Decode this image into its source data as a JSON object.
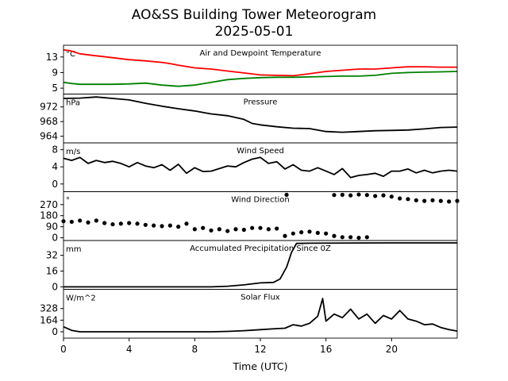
{
  "figure": {
    "title": "AO&SS Building Tower Meteorogram",
    "date": "2025-05-01",
    "xlabel": "Time (UTC)"
  },
  "chart_data": [
    {
      "type": "line",
      "title": "Air and Dewpoint Temperature",
      "unit": "°C",
      "xlim": [
        0,
        24
      ],
      "ylim": [
        3.5,
        16
      ],
      "yticks": [
        5,
        9,
        13
      ],
      "series": [
        {
          "color": "#ff0000",
          "x": [
            0,
            0.4,
            1,
            2,
            3,
            4,
            5,
            6,
            6.5,
            7,
            8,
            9,
            10,
            11,
            12,
            13,
            14,
            15,
            16,
            17,
            18,
            19,
            20,
            21,
            22,
            23,
            24
          ],
          "values": [
            14.8,
            14.6,
            13.8,
            13.3,
            12.8,
            12.3,
            12.0,
            11.6,
            11.3,
            10.9,
            10.2,
            9.9,
            9.4,
            8.9,
            8.4,
            8.3,
            8.2,
            8.7,
            9.3,
            9.6,
            9.9,
            9.9,
            10.2,
            10.5,
            10.5,
            10.4,
            10.4
          ]
        },
        {
          "color": "#008000",
          "x": [
            0,
            0.5,
            1,
            2,
            3,
            4,
            5,
            6,
            7,
            8,
            9,
            10,
            11,
            12,
            13,
            14,
            15,
            16,
            17,
            18,
            19,
            20,
            21,
            22,
            23,
            24
          ],
          "values": [
            6.5,
            6.2,
            6.0,
            6.0,
            6.0,
            6.1,
            6.3,
            5.8,
            5.5,
            5.8,
            6.5,
            7.2,
            7.5,
            7.7,
            7.8,
            7.8,
            7.9,
            8.0,
            8.1,
            8.1,
            8.3,
            8.8,
            9.0,
            9.1,
            9.2,
            9.3
          ]
        }
      ]
    },
    {
      "type": "line",
      "title": "Pressure",
      "unit": "hPa",
      "xlim": [
        0,
        24
      ],
      "ylim": [
        962.2,
        975.5
      ],
      "yticks": [
        964,
        968,
        972
      ],
      "series": [
        {
          "color": "#000000",
          "x": [
            0,
            1,
            2,
            3,
            4,
            5,
            6,
            7,
            8,
            9,
            10,
            11,
            11.5,
            12,
            13,
            14,
            15,
            16,
            17,
            18,
            19,
            20,
            21,
            22,
            23,
            24
          ],
          "values": [
            974.3,
            974.4,
            974.7,
            974.3,
            973.9,
            973.0,
            972.2,
            971.5,
            970.9,
            970.1,
            969.6,
            968.6,
            967.5,
            967.1,
            966.6,
            966.2,
            966.1,
            965.3,
            965.1,
            965.3,
            965.5,
            965.6,
            965.7,
            966.0,
            966.4,
            966.5
          ]
        }
      ]
    },
    {
      "type": "line",
      "title": "Wind Speed",
      "unit": "m/s",
      "xlim": [
        0,
        24
      ],
      "ylim": [
        -1.8,
        9.6
      ],
      "yticks": [
        0,
        4,
        8
      ],
      "series": [
        {
          "color": "#000000",
          "x": [
            0,
            0.5,
            1,
            1.5,
            2,
            2.5,
            3,
            3.5,
            4,
            4.5,
            5,
            5.5,
            6,
            6.5,
            7,
            7.5,
            8,
            8.5,
            9,
            9.5,
            10,
            10.5,
            11,
            11.5,
            12,
            12.5,
            13,
            13.5,
            14,
            14.5,
            15,
            15.5,
            16,
            16.5,
            17,
            17.5,
            18,
            18.5,
            19,
            19.5,
            20,
            20.5,
            21,
            21.5,
            22,
            22.5,
            23,
            23.5,
            24
          ],
          "values": [
            6.0,
            5.5,
            6.2,
            4.8,
            5.5,
            5.0,
            5.3,
            4.8,
            4.0,
            5.0,
            4.2,
            3.8,
            4.5,
            3.2,
            4.6,
            2.5,
            3.8,
            2.9,
            3.0,
            3.6,
            4.2,
            4.0,
            5.0,
            5.8,
            6.2,
            4.8,
            5.2,
            3.5,
            4.5,
            3.2,
            3.0,
            3.8,
            3.0,
            2.2,
            3.6,
            1.5,
            2.0,
            2.2,
            2.5,
            1.8,
            3.0,
            3.0,
            3.5,
            2.6,
            3.2,
            2.6,
            3.0,
            3.2,
            3.0
          ]
        }
      ]
    },
    {
      "type": "scatter",
      "title": "Wind Direction",
      "unit": "°",
      "xlim": [
        0,
        24
      ],
      "ylim": [
        -22,
        375
      ],
      "yticks": [
        0,
        90,
        180,
        270
      ],
      "series": [
        {
          "color": "#000000",
          "x": [
            0,
            0.5,
            1,
            1.5,
            2,
            2.5,
            3,
            3.5,
            4,
            4.5,
            5,
            5.5,
            6,
            6.5,
            7,
            7.5,
            8,
            8.5,
            9,
            9.5,
            10,
            10.5,
            11,
            11.5,
            12,
            12.5,
            13,
            13.5,
            14,
            14.5,
            15,
            15.5,
            16,
            16.5,
            17,
            17.5,
            18,
            18.5
          ],
          "values": [
            135,
            130,
            140,
            125,
            140,
            120,
            110,
            115,
            120,
            115,
            105,
            100,
            95,
            100,
            90,
            115,
            70,
            80,
            60,
            70,
            55,
            70,
            65,
            80,
            80,
            70,
            75,
            15,
            35,
            45,
            50,
            40,
            35,
            15,
            5,
            5,
            0,
            5
          ]
        },
        {
          "color": "#000000",
          "x": [
            13.6,
            16.5,
            17,
            17.5,
            18,
            18.5,
            19,
            19.5,
            20,
            20.5,
            21,
            21.5,
            22,
            22.5,
            23,
            23.5,
            24
          ],
          "values": [
            350,
            348,
            350,
            345,
            352,
            348,
            340,
            345,
            335,
            320,
            315,
            305,
            300,
            305,
            300,
            295,
            300
          ]
        }
      ]
    },
    {
      "type": "line",
      "title": "Accumulated Precipitation Since 0Z",
      "unit": "mm",
      "xlim": [
        0,
        24
      ],
      "ylim": [
        -2.5,
        47
      ],
      "yticks": [
        0,
        16,
        32
      ],
      "series": [
        {
          "color": "#000000",
          "x": [
            0,
            9,
            10,
            11,
            12,
            12.8,
            13.2,
            13.6,
            13.9,
            14.2,
            15,
            18,
            20,
            24
          ],
          "values": [
            0,
            0,
            0.6,
            2.0,
            4.0,
            4.5,
            8,
            20,
            35,
            44,
            44.3,
            44.5,
            44.6,
            44.6
          ]
        }
      ]
    },
    {
      "type": "line",
      "title": "Solar Flux",
      "unit": "W/m^2",
      "xlim": [
        0,
        24
      ],
      "ylim": [
        -90,
        600
      ],
      "yticks": [
        0,
        164,
        328
      ],
      "series": [
        {
          "color": "#000000",
          "x": [
            0,
            0.5,
            1,
            5,
            9,
            10,
            11,
            12,
            13,
            13.5,
            14,
            14.5,
            15,
            15.5,
            15.8,
            16,
            16.5,
            17,
            17.5,
            18,
            18.5,
            19,
            19.5,
            20,
            20.5,
            21,
            21.5,
            22,
            22.5,
            23,
            23.5,
            24
          ],
          "values": [
            70,
            20,
            0,
            0,
            0,
            5,
            15,
            30,
            45,
            50,
            100,
            80,
            120,
            220,
            470,
            150,
            250,
            200,
            320,
            180,
            250,
            120,
            230,
            180,
            300,
            180,
            150,
            100,
            110,
            60,
            30,
            10
          ]
        }
      ]
    }
  ]
}
